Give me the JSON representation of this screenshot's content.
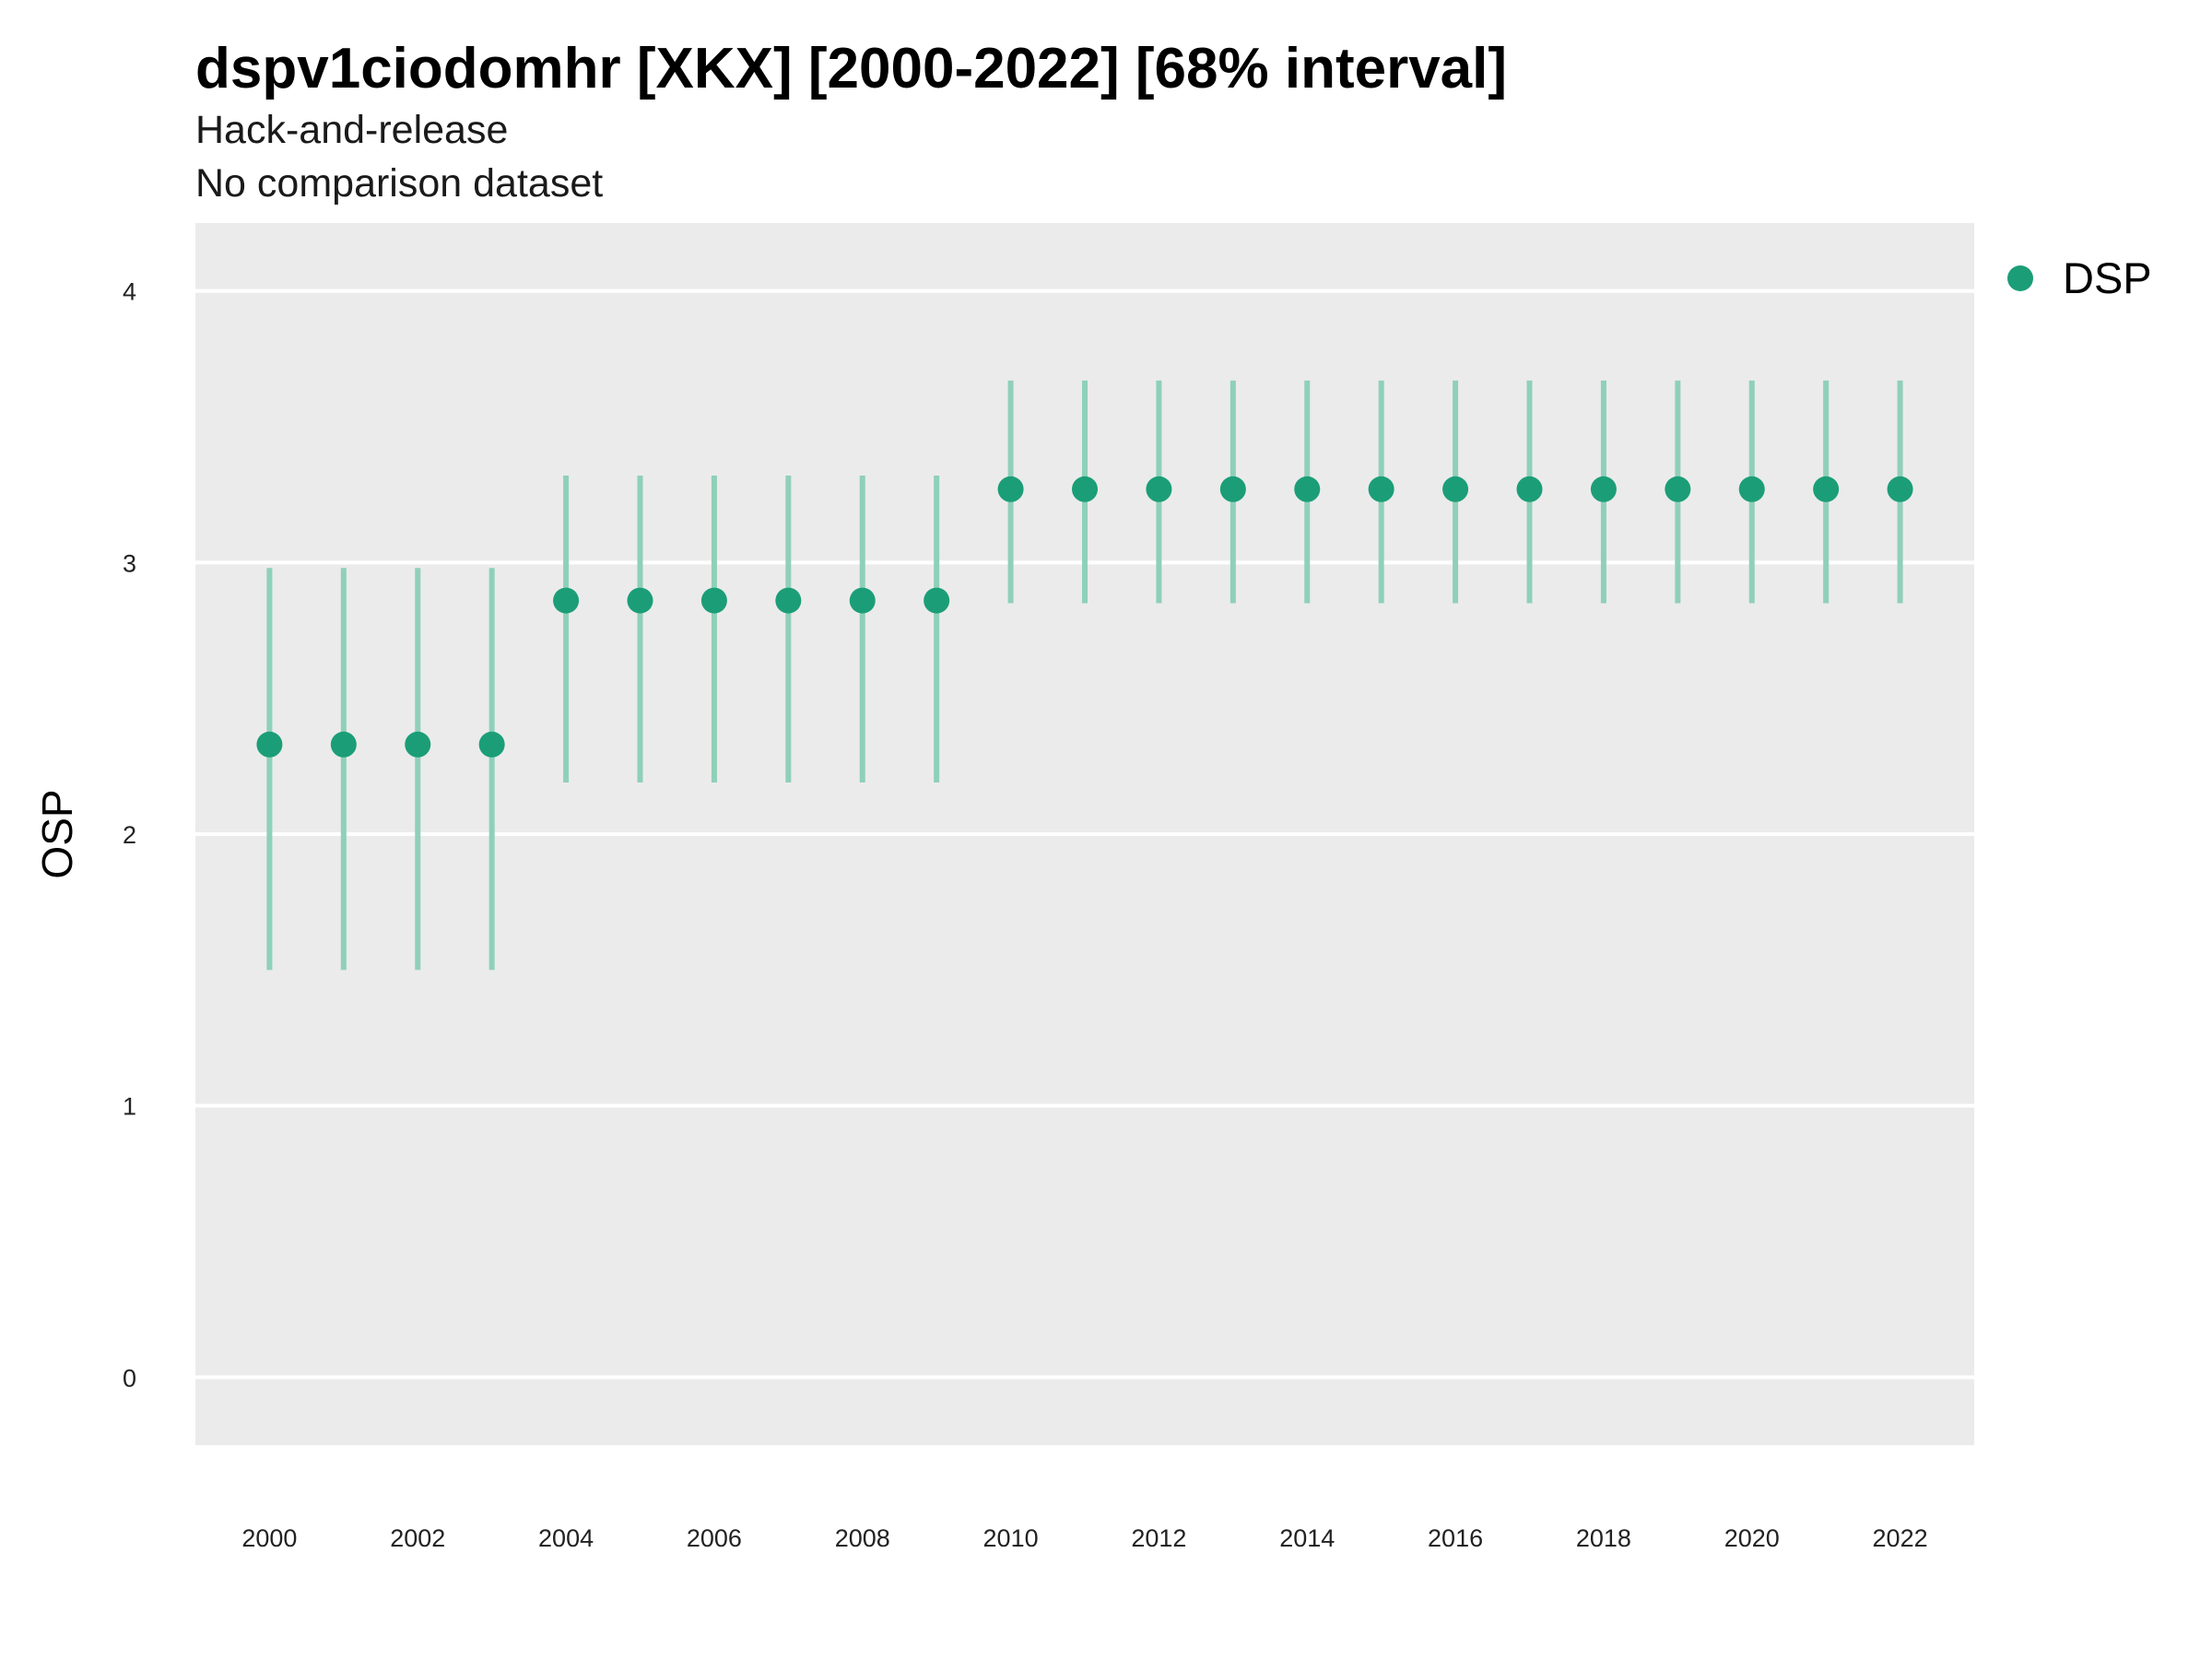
{
  "chart_data": {
    "type": "scatter",
    "title": "dspv1ciodomhr [XKX] [2000-2022] [68% interval]",
    "subtitle": "Hack-and-release",
    "subtitle2": "No comparison dataset",
    "xlabel": "",
    "ylabel": "OSP",
    "ylim": [
      -0.25,
      4.25
    ],
    "xlim": [
      1999,
      2023
    ],
    "yticks": [
      0,
      1,
      2,
      3,
      4
    ],
    "xticks": [
      2000,
      2002,
      2004,
      2006,
      2008,
      2010,
      2012,
      2014,
      2016,
      2018,
      2020,
      2022
    ],
    "grid": "horizontal",
    "legend_position": "right",
    "series": [
      {
        "name": "DSP",
        "color": "#1b9e77",
        "x": [
          2000,
          2001,
          2002,
          2003,
          2004,
          2005,
          2006,
          2007,
          2008,
          2009,
          2010,
          2011,
          2012,
          2013,
          2014,
          2015,
          2016,
          2017,
          2018,
          2019,
          2020,
          2021,
          2022
        ],
        "y": [
          2.33,
          2.33,
          2.33,
          2.33,
          2.86,
          2.86,
          2.86,
          2.86,
          2.86,
          2.86,
          3.27,
          3.27,
          3.27,
          3.27,
          3.27,
          3.27,
          3.27,
          3.27,
          3.27,
          3.27,
          3.27,
          3.27,
          3.27
        ],
        "lower": [
          1.5,
          1.5,
          1.5,
          1.5,
          2.19,
          2.19,
          2.19,
          2.19,
          2.19,
          2.19,
          2.85,
          2.85,
          2.85,
          2.85,
          2.85,
          2.85,
          2.85,
          2.85,
          2.85,
          2.85,
          2.85,
          2.85,
          2.85
        ],
        "upper": [
          2.98,
          2.98,
          2.98,
          2.98,
          3.32,
          3.32,
          3.32,
          3.32,
          3.32,
          3.32,
          3.67,
          3.67,
          3.67,
          3.67,
          3.67,
          3.67,
          3.67,
          3.67,
          3.67,
          3.67,
          3.67,
          3.67,
          3.67
        ]
      }
    ]
  },
  "colors": {
    "panel_background": "#ebebeb",
    "grid": "#ffffff",
    "point": "#1b9e77",
    "interval": "#8fd0b9"
  }
}
